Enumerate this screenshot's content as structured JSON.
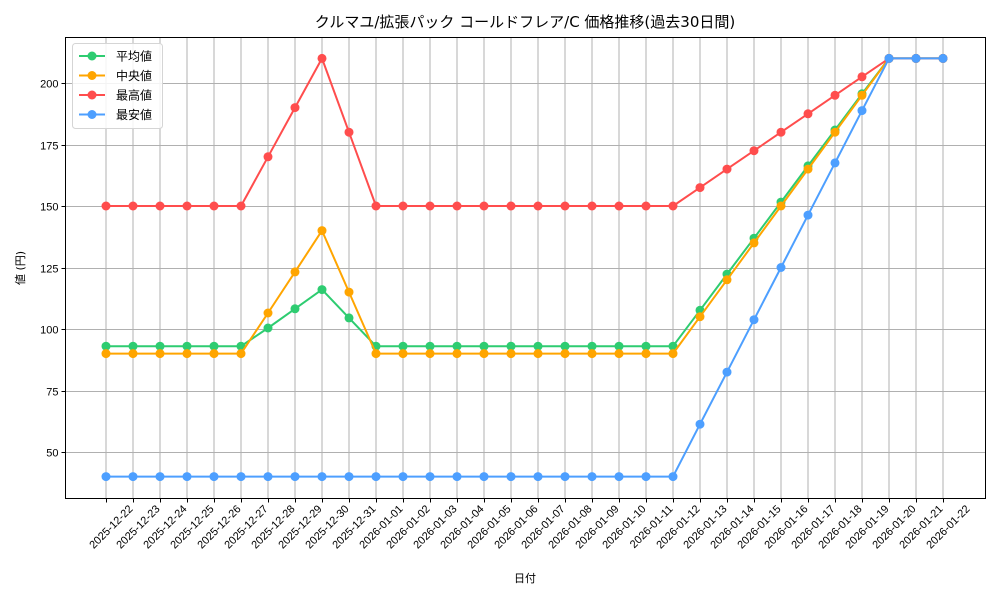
{
  "chart_data": {
    "type": "line",
    "title": "クルマユ/拡張パック コールドフレア/C 価格推移(過去30日間)",
    "xlabel": "日付",
    "ylabel": "値 (円)",
    "ylim": [
      32,
      218
    ],
    "yticks": [
      50,
      75,
      100,
      125,
      150,
      175,
      200
    ],
    "grid": true,
    "legend_position": "upper left",
    "categories": [
      "2025-12-22",
      "2025-12-23",
      "2025-12-24",
      "2025-12-25",
      "2025-12-26",
      "2025-12-27",
      "2025-12-28",
      "2025-12-29",
      "2025-12-30",
      "2025-12-31",
      "2026-01-01",
      "2026-01-02",
      "2026-01-03",
      "2026-01-04",
      "2026-01-05",
      "2026-01-06",
      "2026-01-07",
      "2026-01-08",
      "2026-01-09",
      "2026-01-10",
      "2026-01-11",
      "2026-01-12",
      "2026-01-13",
      "2026-01-14",
      "2026-01-15",
      "2026-01-16",
      "2026-01-17",
      "2026-01-18",
      "2026-01-19",
      "2026-01-20",
      "2026-01-21",
      "2026-01-22"
    ],
    "series": [
      {
        "name": "平均値",
        "color": "#2ecc71",
        "values": [
          93,
          93,
          93,
          93,
          93,
          93,
          100.4,
          108.2,
          116,
          104.5,
          93,
          93,
          93,
          93,
          93,
          93,
          93,
          93,
          93,
          93,
          93,
          93,
          107.6,
          122.3,
          136.9,
          151.6,
          166.3,
          180.9,
          195.6,
          210,
          210,
          210
        ]
      },
      {
        "name": "中央値",
        "color": "#ffa500",
        "values": [
          90,
          90,
          90,
          90,
          90,
          90,
          106.5,
          123.2,
          140,
          115,
          90,
          90,
          90,
          90,
          90,
          90,
          90,
          90,
          90,
          90,
          90,
          90,
          105,
          120,
          135,
          150,
          165,
          180,
          195,
          210,
          210,
          210
        ]
      },
      {
        "name": "最高値",
        "color": "#ff4d4d",
        "values": [
          150,
          150,
          150,
          150,
          150,
          150,
          170,
          190,
          210,
          180,
          150,
          150,
          150,
          150,
          150,
          150,
          150,
          150,
          150,
          150,
          150,
          150,
          157.5,
          165,
          172.5,
          180,
          187.5,
          195,
          202.5,
          210,
          210,
          210
        ]
      },
      {
        "name": "最安値",
        "color": "#4d9fff",
        "values": [
          40,
          40,
          40,
          40,
          40,
          40,
          40,
          40,
          40,
          40,
          40,
          40,
          40,
          40,
          40,
          40,
          40,
          40,
          40,
          40,
          40,
          40,
          61.3,
          82.5,
          103.8,
          125,
          146.3,
          167.5,
          188.8,
          210,
          210,
          210
        ]
      }
    ]
  }
}
